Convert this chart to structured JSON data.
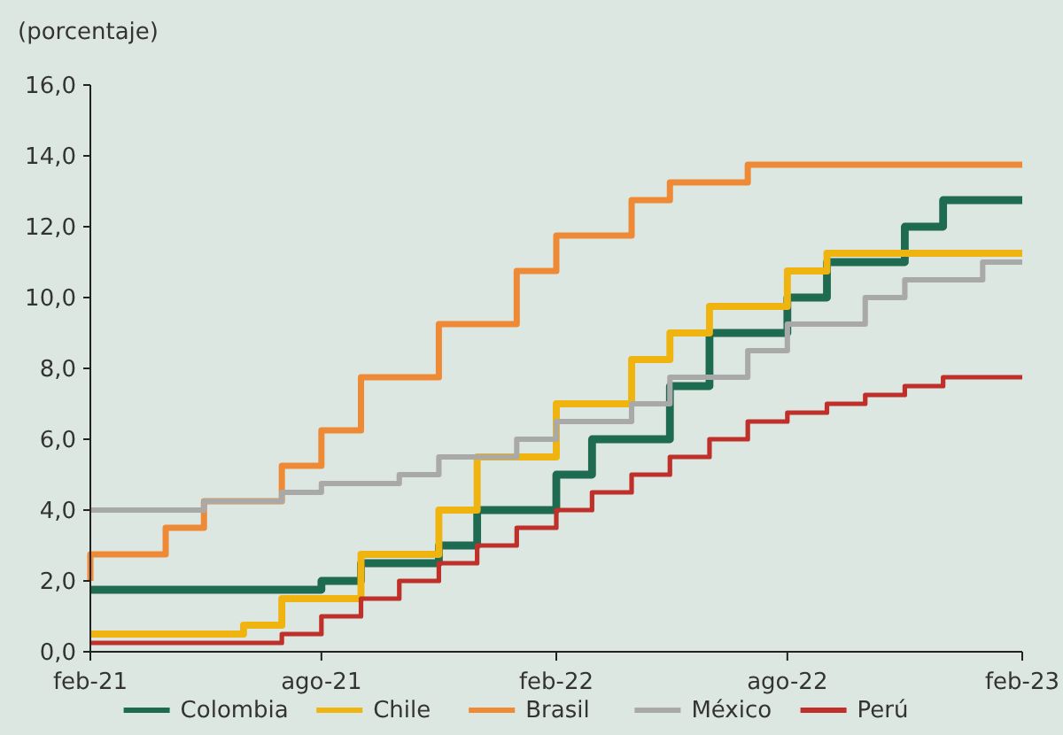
{
  "chart_data": {
    "type": "step",
    "ylabel": "(porcentaje)",
    "x": [
      "2021-02",
      "2021-03",
      "2021-04",
      "2021-05",
      "2021-06",
      "2021-07",
      "2021-08",
      "2021-09",
      "2021-10",
      "2021-11",
      "2021-12",
      "2022-01",
      "2022-02",
      "2022-03",
      "2022-04",
      "2022-05",
      "2022-06",
      "2022-07",
      "2022-08",
      "2022-09",
      "2022-10",
      "2022-11",
      "2022-12",
      "2023-01",
      "2023-02"
    ],
    "series": [
      {
        "name": "Colombia",
        "color": "#1e6b52",
        "values": [
          1.75,
          1.75,
          1.75,
          1.75,
          1.75,
          1.75,
          1.75,
          2.0,
          2.5,
          2.5,
          3.0,
          4.0,
          4.0,
          5.0,
          6.0,
          6.0,
          7.5,
          9.0,
          9.0,
          10.0,
          11.0,
          11.0,
          12.0,
          12.75,
          12.75
        ]
      },
      {
        "name": "Chile",
        "color": "#f0b410",
        "values": [
          0.5,
          0.5,
          0.5,
          0.5,
          0.5,
          0.75,
          1.5,
          1.5,
          2.75,
          2.75,
          4.0,
          5.5,
          5.5,
          7.0,
          7.0,
          8.25,
          9.0,
          9.75,
          9.75,
          10.75,
          11.25,
          11.25,
          11.25,
          11.25,
          11.25
        ]
      },
      {
        "name": "Brasil",
        "color": "#ee8a35",
        "values": [
          2.0,
          2.75,
          2.75,
          3.5,
          4.25,
          4.25,
          5.25,
          6.25,
          7.75,
          7.75,
          9.25,
          9.25,
          10.75,
          11.75,
          11.75,
          12.75,
          13.25,
          13.25,
          13.75,
          13.75,
          13.75,
          13.75,
          13.75,
          13.75,
          13.75
        ]
      },
      {
        "name": "México",
        "color": "#a9a9a9",
        "values": [
          4.0,
          4.0,
          4.0,
          4.0,
          4.25,
          4.25,
          4.5,
          4.75,
          4.75,
          5.0,
          5.5,
          5.5,
          6.0,
          6.5,
          6.5,
          7.0,
          7.75,
          7.75,
          8.5,
          9.25,
          9.25,
          10.0,
          10.5,
          10.5,
          11.0
        ]
      },
      {
        "name": "Perú",
        "color": "#c0302a",
        "values": [
          0.25,
          0.25,
          0.25,
          0.25,
          0.25,
          0.25,
          0.5,
          1.0,
          1.5,
          2.0,
          2.5,
          3.0,
          3.5,
          4.0,
          4.5,
          5.0,
          5.5,
          6.0,
          6.5,
          6.75,
          7.0,
          7.25,
          7.5,
          7.75,
          7.75
        ]
      }
    ],
    "xlim": [
      "2021-02",
      "2023-02"
    ],
    "xticks": [
      {
        "value": "2021-02",
        "label": "feb-21"
      },
      {
        "value": "2021-08",
        "label": "ago-21"
      },
      {
        "value": "2022-02",
        "label": "feb-22"
      },
      {
        "value": "2022-08",
        "label": "ago-22"
      },
      {
        "value": "2023-02",
        "label": "feb-23"
      }
    ],
    "ylim": [
      0,
      16
    ],
    "yticks": [
      {
        "value": 0,
        "label": "0,0"
      },
      {
        "value": 2,
        "label": "2,0"
      },
      {
        "value": 4,
        "label": "4,0"
      },
      {
        "value": 6,
        "label": "6,0"
      },
      {
        "value": 8,
        "label": "8,0"
      },
      {
        "value": 10,
        "label": "10,0"
      },
      {
        "value": 12,
        "label": "12,0"
      },
      {
        "value": 14,
        "label": "14,0"
      },
      {
        "value": 16,
        "label": "16,0"
      }
    ],
    "grid": false,
    "legend": "bottom",
    "line_style": "solid"
  }
}
